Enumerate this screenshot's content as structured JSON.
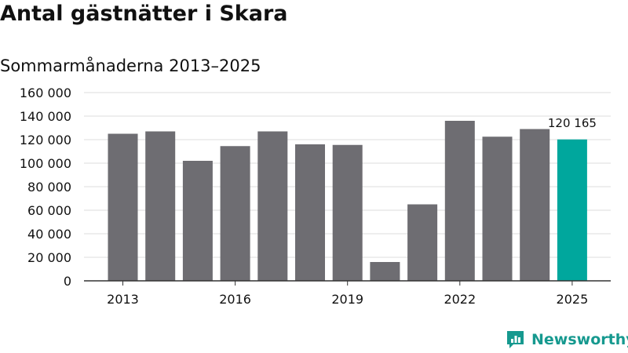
{
  "title": "Antal gästnätter i Skara",
  "subtitle": "Sommarmånaderna 2013–2025",
  "brand": {
    "name": "Newsworthy",
    "icon": "newsworthy-logo-icon"
  },
  "colors": {
    "bar": "#6e6d72",
    "highlight": "#00a79d",
    "grid": "#dcdcdc",
    "axis": "#333333",
    "text": "#111111",
    "brand": "#16998f"
  },
  "chart_data": {
    "type": "bar",
    "categories": [
      "2013",
      "2014",
      "2015",
      "2016",
      "2017",
      "2018",
      "2019",
      "2020",
      "2021",
      "2022",
      "2023",
      "2024",
      "2025"
    ],
    "values": [
      125000,
      127000,
      102000,
      114500,
      127000,
      116000,
      115500,
      16000,
      65000,
      136000,
      122500,
      129000,
      120165
    ],
    "highlight_index": 12,
    "data_labels": [
      {
        "index": 12,
        "text": "120 165"
      }
    ],
    "x_tick_labels": [
      "2013",
      "2016",
      "2019",
      "2022",
      "2025"
    ],
    "y_ticks": [
      {
        "value": 0,
        "label": "0"
      },
      {
        "value": 20000,
        "label": "20 000"
      },
      {
        "value": 40000,
        "label": "40 000"
      },
      {
        "value": 60000,
        "label": "60 000"
      },
      {
        "value": 80000,
        "label": "80 000"
      },
      {
        "value": 100000,
        "label": "100 000"
      },
      {
        "value": 120000,
        "label": "120 000"
      },
      {
        "value": 140000,
        "label": "140 000"
      },
      {
        "value": 160000,
        "label": "160 000"
      }
    ],
    "ylim": [
      0,
      160000
    ],
    "grid": true,
    "legend": false,
    "xlabel": "",
    "ylabel": ""
  }
}
